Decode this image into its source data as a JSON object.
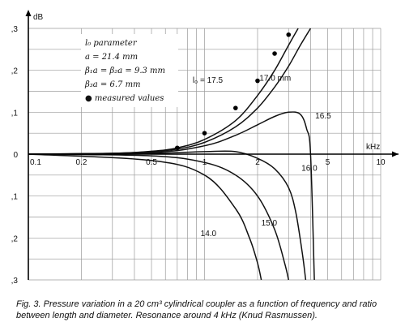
{
  "chart_data": {
    "type": "line",
    "x_scale": "log",
    "xlim": [
      0.1,
      10
    ],
    "ylim": [
      -0.3,
      0.3
    ],
    "grid": true,
    "xlabel": "kHz",
    "ylabel": "dB",
    "x_ticks": [
      {
        "value": 0.1,
        "label": "0.1"
      },
      {
        "value": 0.2,
        "label": "0.2"
      },
      {
        "value": 0.5,
        "label": "0.5"
      },
      {
        "value": 1,
        "label": "1"
      },
      {
        "value": 2,
        "label": "2"
      },
      {
        "value": 5,
        "label": "5"
      },
      {
        "value": 10,
        "label": "10"
      }
    ],
    "y_ticks": [
      {
        "value": 0.3,
        "label": ",3"
      },
      {
        "value": 0.2,
        "label": ",2"
      },
      {
        "value": 0.1,
        "label": ",1"
      },
      {
        "value": 0,
        "label": "0"
      },
      {
        "value": -0.1,
        "label": ",1"
      },
      {
        "value": -0.2,
        "label": ",2"
      },
      {
        "value": -0.3,
        "label": ",3"
      }
    ],
    "legend": {
      "lines": [
        "l₀ parameter",
        "a = 21.4 mm",
        "β₁a = β₂a = 9.3 mm",
        "β₃a = 6.7 mm",
        "● measured values"
      ]
    },
    "series": [
      {
        "name": "l₀ = 17.5",
        "x": [
          0.1,
          0.3,
          0.5,
          0.7,
          1.0,
          1.5,
          2.0,
          2.5,
          3.0,
          3.4
        ],
        "y": [
          0,
          0.002,
          0.007,
          0.015,
          0.035,
          0.08,
          0.14,
          0.2,
          0.26,
          0.3
        ]
      },
      {
        "name": "17.0 mm",
        "x": [
          0.1,
          0.3,
          0.5,
          0.7,
          1.0,
          1.5,
          2.0,
          2.5,
          3.0,
          3.5,
          4.0
        ],
        "y": [
          0,
          0.002,
          0.006,
          0.012,
          0.028,
          0.065,
          0.11,
          0.16,
          0.21,
          0.26,
          0.3
        ]
      },
      {
        "name": "16.5",
        "x": [
          0.1,
          0.5,
          1.0,
          1.5,
          2.0,
          2.5,
          3.0,
          3.5,
          3.8,
          4.0,
          4.2
        ],
        "y": [
          0,
          0.004,
          0.02,
          0.045,
          0.07,
          0.09,
          0.1,
          0.095,
          0.06,
          0.0,
          -0.3
        ]
      },
      {
        "name": "16.0",
        "x": [
          0.1,
          0.5,
          1.0,
          1.5,
          2.0,
          2.5,
          3.0,
          3.3,
          3.6,
          3.75
        ],
        "y": [
          0,
          0.002,
          0.006,
          0.006,
          -0.01,
          -0.035,
          -0.08,
          -0.14,
          -0.24,
          -0.3
        ]
      },
      {
        "name": "15.0",
        "x": [
          0.1,
          0.5,
          1.0,
          1.5,
          2.0,
          2.5,
          2.85,
          3.0
        ],
        "y": [
          0,
          -0.004,
          -0.02,
          -0.05,
          -0.1,
          -0.18,
          -0.26,
          -0.3
        ]
      },
      {
        "name": "14.0",
        "x": [
          0.1,
          0.5,
          1.0,
          1.5,
          1.8,
          2.0,
          2.1
        ],
        "y": [
          0,
          -0.015,
          -0.05,
          -0.13,
          -0.2,
          -0.26,
          -0.3
        ]
      }
    ],
    "measured_points": {
      "x": [
        0.7,
        1.0,
        1.5,
        2.0,
        2.5,
        3.0
      ],
      "y": [
        0.015,
        0.05,
        0.11,
        0.175,
        0.24,
        0.285
      ]
    }
  },
  "caption": "Fig. 3.  Pressure variation in a 20 cm³ cylindrical coupler as a function of frequency and ratio between length and diameter. Resonance around 4 kHz (Knud Rasmussen)."
}
